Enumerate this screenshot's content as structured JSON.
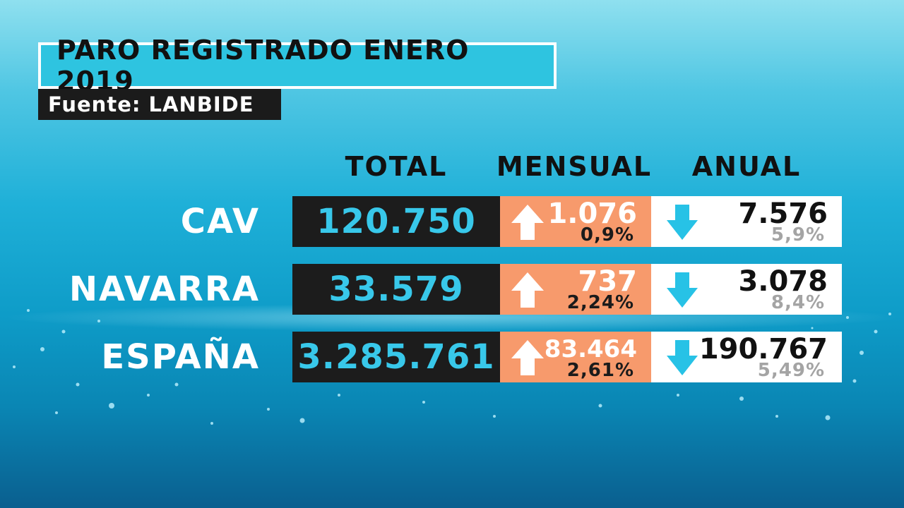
{
  "title": "PARO REGISTRADO ENERO 2019",
  "source": "Fuente: LANBIDE",
  "columns": {
    "total": "TOTAL",
    "mensual": "MENSUAL",
    "anual": "ANUAL"
  },
  "colors": {
    "accent": "#2ec4e0",
    "total_text": "#38c8ea",
    "mensual_bg": "#f79a6c",
    "anual_arrow": "#27c2e6"
  },
  "rows": [
    {
      "label": "CAV",
      "total": "120.750",
      "mensual_value": "1.076",
      "mensual_pct": "0,9%",
      "mensual_direction": "up",
      "anual_value": "7.576",
      "anual_pct": "5,9%",
      "anual_direction": "down"
    },
    {
      "label": "NAVARRA",
      "total": "33.579",
      "mensual_value": "737",
      "mensual_pct": "2,24%",
      "mensual_direction": "up",
      "anual_value": "3.078",
      "anual_pct": "8,4%",
      "anual_direction": "down"
    },
    {
      "label": "ESPAÑA",
      "total": "3.285.761",
      "mensual_value": "83.464",
      "mensual_pct": "2,61%",
      "mensual_direction": "up",
      "anual_value": "190.767",
      "anual_pct": "5,49%",
      "anual_direction": "down"
    }
  ]
}
